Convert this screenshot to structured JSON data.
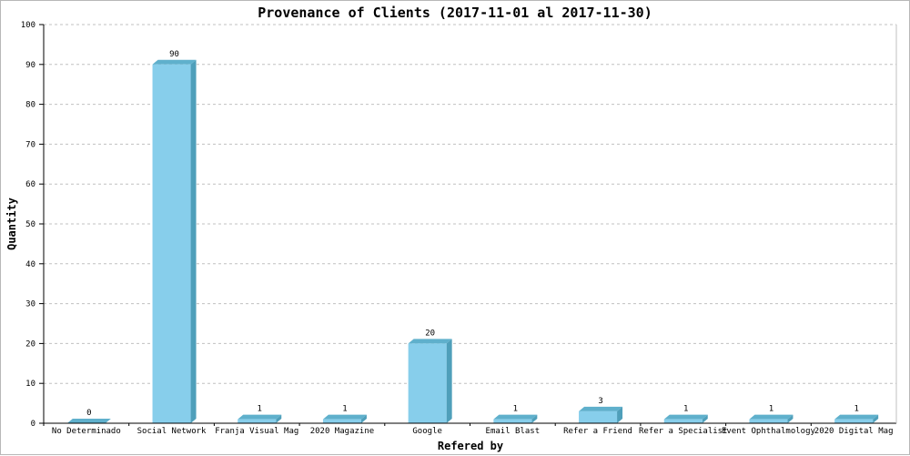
{
  "colors": {
    "bar_front": "#87ceeb",
    "bar_side": "#4f9fba",
    "bar_top": "#5fb0cc",
    "grid": "#c0c0c0",
    "axis": "#000000"
  },
  "chart_data": {
    "type": "bar",
    "title": "Provenance of Clients (2017-11-01 al 2017-11-30)",
    "xlabel": "Refered by",
    "ylabel": "Quantity",
    "ylim": [
      0,
      100
    ],
    "yticks": [
      0,
      10,
      20,
      30,
      40,
      50,
      60,
      70,
      80,
      90,
      100
    ],
    "grid": true,
    "legend": "none",
    "categories": [
      "No Determinado",
      "Social Network",
      "Franja Visual Mag",
      "2020 Magazine",
      "Google",
      "Email Blast",
      "Refer a Friend",
      "Refer a Specialist",
      "Event Ophthalmology",
      "2020 Digital Mag"
    ],
    "values": [
      0,
      90,
      1,
      1,
      20,
      1,
      3,
      1,
      1,
      1
    ]
  }
}
